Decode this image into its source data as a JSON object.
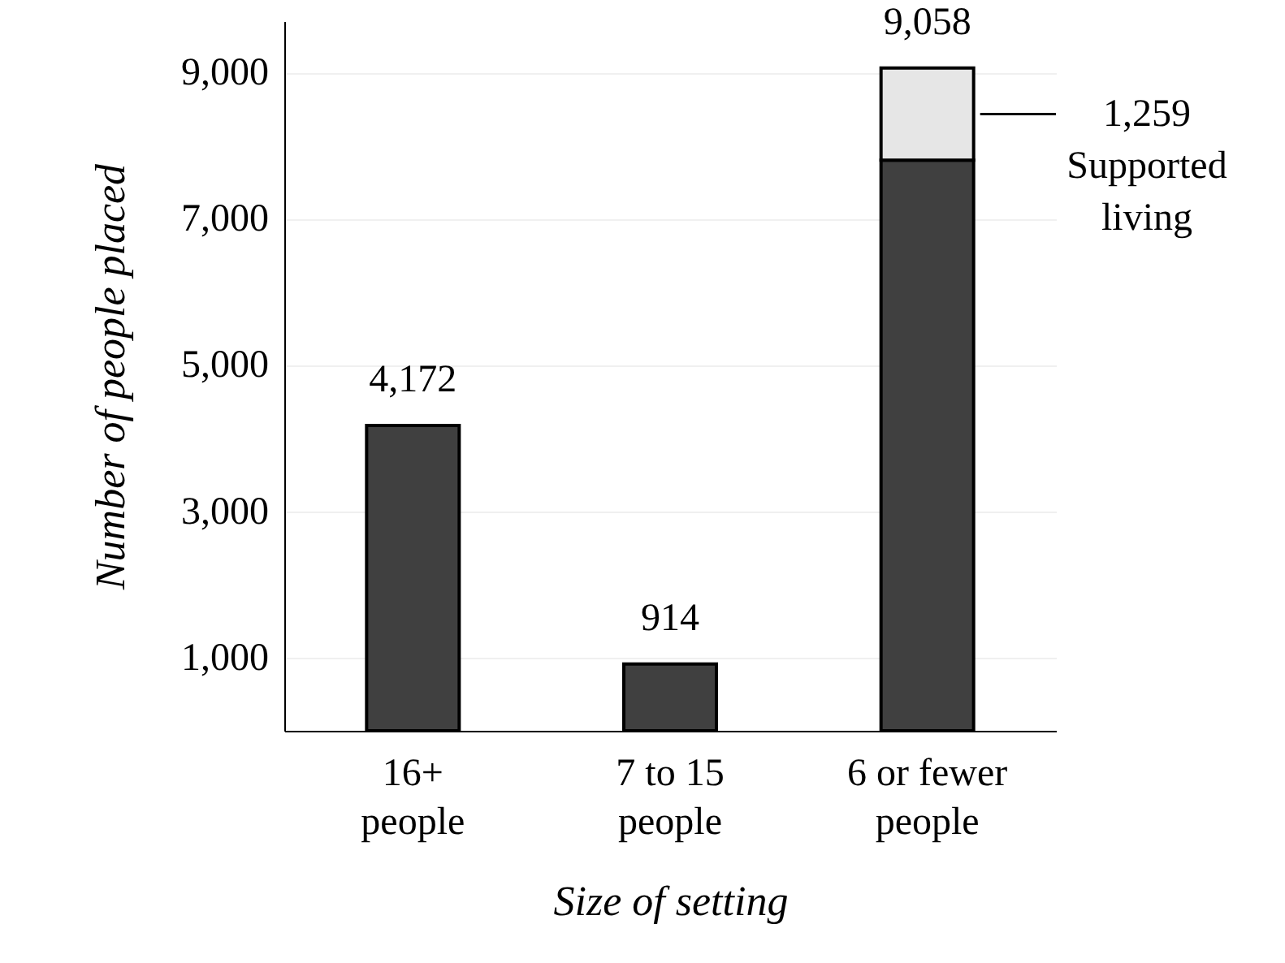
{
  "chart_data": {
    "type": "bar",
    "stacked": true,
    "xlabel": "Size of setting",
    "ylabel": "Number of people placed",
    "categories": [
      "16+ people",
      "7 to 15 people",
      "6 or fewer people"
    ],
    "series": [
      {
        "color": "#404040",
        "values": [
          4172,
          914,
          7799
        ]
      },
      {
        "name": "Supported living",
        "color": "#e6e6e6",
        "values": [
          null,
          null,
          1259
        ],
        "value_labels": [
          null,
          null,
          "1,259"
        ]
      }
    ],
    "totals": [
      "4,172",
      "914",
      "9,058"
    ],
    "ylim": [
      0,
      9700
    ],
    "yticks": [
      {
        "value": 1000,
        "label": "1,000"
      },
      {
        "value": 3000,
        "label": "3,000"
      },
      {
        "value": 5000,
        "label": "5,000"
      },
      {
        "value": 7000,
        "label": "7,000"
      },
      {
        "value": 9000,
        "label": "9,000"
      }
    ],
    "grid": "y"
  }
}
